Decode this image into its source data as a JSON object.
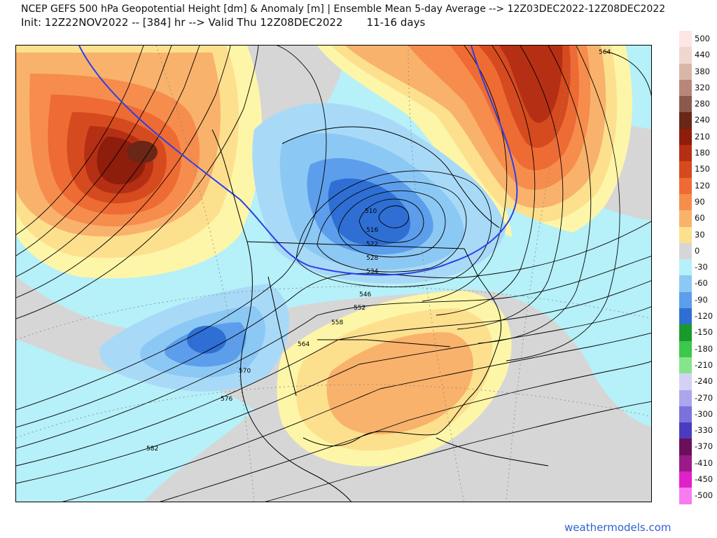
{
  "header": {
    "title": "NCEP GEFS 500 hPa Geopotential Height [dm] & Anomaly [m] | Ensemble Mean 5-day Average --> 12Z03DEC2022-12Z08DEC2022",
    "init_line": "Init: 12Z22NOV2022 -- [384] hr --> Valid Thu 12Z08DEC2022",
    "period": "11-16 days"
  },
  "map": {
    "contour_labels": [
      "510",
      "516",
      "522",
      "528",
      "534",
      "546",
      "552",
      "558",
      "564",
      "570",
      "576",
      "582",
      "564"
    ],
    "colors": {
      "ocean_background": "#b6f0f8",
      "neutral": "#d6d6d6",
      "positive_light": "#fdf6a8",
      "positive_mid": "#f9a25b",
      "positive_strong": "#c9431c",
      "positive_extreme": "#6a2616",
      "negative_light": "#a8daf8",
      "negative_mid": "#6aa9ec",
      "negative_strong": "#2f6fd4",
      "contour": "#000000",
      "height_540_line": "#2d3fe8"
    }
  },
  "legend": {
    "entries": [
      {
        "label": "500",
        "color": "#fde6e6"
      },
      {
        "label": "440",
        "color": "#f0d7cf"
      },
      {
        "label": "380",
        "color": "#d8b6a8"
      },
      {
        "label": "320",
        "color": "#b9877a"
      },
      {
        "label": "280",
        "color": "#8b5a4c"
      },
      {
        "label": "240",
        "color": "#6a2616"
      },
      {
        "label": "210",
        "color": "#8e1d0c"
      },
      {
        "label": "180",
        "color": "#b52f14"
      },
      {
        "label": "150",
        "color": "#d54a1e"
      },
      {
        "label": "120",
        "color": "#ee6b34"
      },
      {
        "label": "90",
        "color": "#f68d4d"
      },
      {
        "label": "60",
        "color": "#f9b26b"
      },
      {
        "label": "30",
        "color": "#fde08e"
      },
      {
        "label": "0",
        "color": "#d6d6d6"
      },
      {
        "label": "-30",
        "color": "#b6f0f8"
      },
      {
        "label": "-60",
        "color": "#8cc8f4"
      },
      {
        "label": "-90",
        "color": "#5c9eec"
      },
      {
        "label": "-120",
        "color": "#2f6fd4"
      },
      {
        "label": "-150",
        "color": "#1a9a2c"
      },
      {
        "label": "-180",
        "color": "#3cc84a"
      },
      {
        "label": "-210",
        "color": "#86e58a"
      },
      {
        "label": "-240",
        "color": "#d4d2f4"
      },
      {
        "label": "-270",
        "color": "#aca6ec"
      },
      {
        "label": "-300",
        "color": "#7c72dc"
      },
      {
        "label": "-330",
        "color": "#4a3cc0"
      },
      {
        "label": "-370",
        "color": "#6a0f5a"
      },
      {
        "label": "-410",
        "color": "#9a1a8a"
      },
      {
        "label": "-450",
        "color": "#e020c8"
      },
      {
        "label": "-500",
        "color": "#f87cf0"
      }
    ]
  },
  "footer": {
    "credit": "weathermodels.com"
  }
}
